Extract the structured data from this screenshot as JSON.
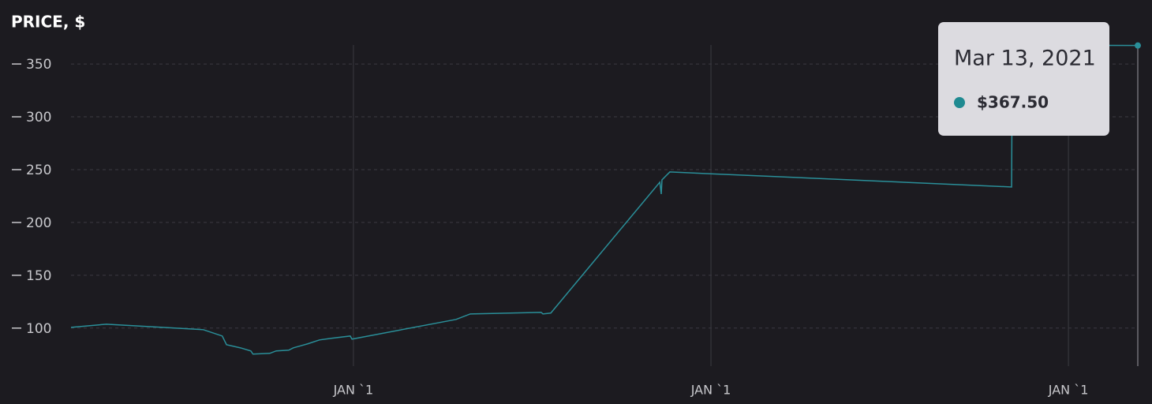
{
  "chart_data": {
    "type": "line",
    "title": "PRICE, $",
    "color": "#2a8f99",
    "x": [
      2018.21,
      2018.309,
      2018.58,
      2018.633,
      2018.645,
      2018.684,
      2018.713,
      2018.719,
      2018.766,
      2018.784,
      2018.819,
      2018.832,
      2018.872,
      2018.905,
      2018.938,
      2018.991,
      2018.996,
      2019.287,
      2019.327,
      2019.525,
      2019.53,
      2019.552,
      2019.857,
      2019.861,
      2019.863,
      2019.885,
      2020.841,
      2020.843,
      2021.194
    ],
    "values": [
      100.7,
      103.7,
      98.5,
      92.5,
      84.3,
      81.3,
      78.4,
      75.4,
      76.1,
      78.4,
      79.1,
      81.3,
      85.1,
      88.8,
      90.3,
      92.5,
      89.6,
      108.2,
      113.4,
      114.9,
      113.4,
      114.2,
      238.1,
      226.9,
      240.3,
      247.8,
      233.6,
      367.9,
      367.5
    ],
    "xlim": [
      2018.21,
      2021.194
    ],
    "xticks": [
      {
        "value": 2019,
        "label": "JAN `1"
      },
      {
        "value": 2020,
        "label": "JAN `1"
      },
      {
        "value": 2021,
        "label": "JAN `1"
      }
    ],
    "ylim": [
      64,
      368
    ],
    "yticks": [
      100,
      150,
      200,
      250,
      300,
      350
    ],
    "grid": true,
    "tooltip": {
      "title": "Mar 13, 2021",
      "value_label": "$367.50"
    }
  }
}
